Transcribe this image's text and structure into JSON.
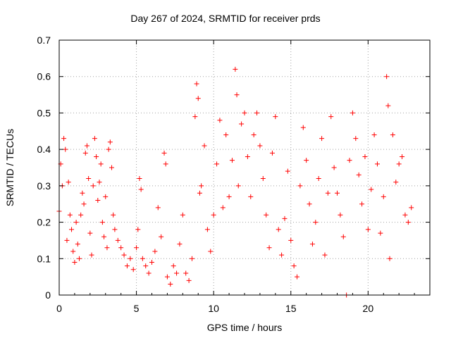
{
  "chart_data": {
    "type": "scatter",
    "title": "Day 267 of 2024, SRMTID for receiver prds",
    "xlabel": "GPS time / hours",
    "ylabel": "SRMTID / TECUs",
    "xlim": [
      0,
      24
    ],
    "ylim": [
      0,
      0.7
    ],
    "xticks": [
      0,
      5,
      10,
      15,
      20
    ],
    "xtick_labels": [
      "0",
      "5",
      "10",
      "15",
      "20"
    ],
    "yticks": [
      0,
      0.1,
      0.2,
      0.3,
      0.4,
      0.5,
      0.6,
      0.7
    ],
    "ytick_labels": [
      "0",
      "0.1",
      "0.2",
      "0.3",
      "0.4",
      "0.5",
      "0.6",
      "0.7"
    ],
    "grid": true,
    "marker": "+",
    "color": "#ff0000",
    "series": [
      {
        "name": "SRMTID",
        "points": [
          [
            0.0,
            0.23
          ],
          [
            0.1,
            0.36
          ],
          [
            0.2,
            0.3
          ],
          [
            0.3,
            0.43
          ],
          [
            0.4,
            0.4
          ],
          [
            0.5,
            0.15
          ],
          [
            0.6,
            0.31
          ],
          [
            0.7,
            0.22
          ],
          [
            0.8,
            0.18
          ],
          [
            0.9,
            0.12
          ],
          [
            1.0,
            0.09
          ],
          [
            1.1,
            0.2
          ],
          [
            1.2,
            0.14
          ],
          [
            1.3,
            0.1
          ],
          [
            1.4,
            0.22
          ],
          [
            1.5,
            0.28
          ],
          [
            1.6,
            0.25
          ],
          [
            1.7,
            0.39
          ],
          [
            1.8,
            0.41
          ],
          [
            1.9,
            0.32
          ],
          [
            2.0,
            0.17
          ],
          [
            2.1,
            0.11
          ],
          [
            2.2,
            0.3
          ],
          [
            2.3,
            0.43
          ],
          [
            2.4,
            0.38
          ],
          [
            2.5,
            0.26
          ],
          [
            2.6,
            0.31
          ],
          [
            2.7,
            0.36
          ],
          [
            2.8,
            0.2
          ],
          [
            2.9,
            0.16
          ],
          [
            3.0,
            0.27
          ],
          [
            3.1,
            0.13
          ],
          [
            3.2,
            0.4
          ],
          [
            3.3,
            0.42
          ],
          [
            3.4,
            0.35
          ],
          [
            3.5,
            0.22
          ],
          [
            3.6,
            0.18
          ],
          [
            3.8,
            0.15
          ],
          [
            4.0,
            0.13
          ],
          [
            4.2,
            0.11
          ],
          [
            4.4,
            0.08
          ],
          [
            4.6,
            0.1
          ],
          [
            4.8,
            0.07
          ],
          [
            5.0,
            0.13
          ],
          [
            5.1,
            0.18
          ],
          [
            5.2,
            0.32
          ],
          [
            5.3,
            0.29
          ],
          [
            5.4,
            0.1
          ],
          [
            5.6,
            0.08
          ],
          [
            5.8,
            0.06
          ],
          [
            6.0,
            0.09
          ],
          [
            6.2,
            0.12
          ],
          [
            6.4,
            0.24
          ],
          [
            6.6,
            0.16
          ],
          [
            6.8,
            0.39
          ],
          [
            6.9,
            0.36
          ],
          [
            7.0,
            0.05
          ],
          [
            7.2,
            0.03
          ],
          [
            7.4,
            0.08
          ],
          [
            7.6,
            0.06
          ],
          [
            7.8,
            0.14
          ],
          [
            8.0,
            0.22
          ],
          [
            8.2,
            0.06
          ],
          [
            8.4,
            0.04
          ],
          [
            8.6,
            0.1
          ],
          [
            8.8,
            0.49
          ],
          [
            8.9,
            0.58
          ],
          [
            9.0,
            0.54
          ],
          [
            9.1,
            0.28
          ],
          [
            9.2,
            0.3
          ],
          [
            9.4,
            0.41
          ],
          [
            9.6,
            0.18
          ],
          [
            9.8,
            0.12
          ],
          [
            10.0,
            0.22
          ],
          [
            10.2,
            0.36
          ],
          [
            10.4,
            0.48
          ],
          [
            10.6,
            0.24
          ],
          [
            10.8,
            0.44
          ],
          [
            11.0,
            0.27
          ],
          [
            11.2,
            0.37
          ],
          [
            11.4,
            0.62
          ],
          [
            11.5,
            0.55
          ],
          [
            11.6,
            0.3
          ],
          [
            11.8,
            0.47
          ],
          [
            12.0,
            0.5
          ],
          [
            12.2,
            0.38
          ],
          [
            12.4,
            0.27
          ],
          [
            12.6,
            0.44
          ],
          [
            12.8,
            0.5
          ],
          [
            13.0,
            0.41
          ],
          [
            13.2,
            0.32
          ],
          [
            13.4,
            0.22
          ],
          [
            13.6,
            0.13
          ],
          [
            13.8,
            0.39
          ],
          [
            14.0,
            0.49
          ],
          [
            14.2,
            0.18
          ],
          [
            14.4,
            0.11
          ],
          [
            14.6,
            0.21
          ],
          [
            14.8,
            0.34
          ],
          [
            15.0,
            0.15
          ],
          [
            15.2,
            0.08
          ],
          [
            15.4,
            0.05
          ],
          [
            15.6,
            0.3
          ],
          [
            15.8,
            0.46
          ],
          [
            16.0,
            0.37
          ],
          [
            16.2,
            0.25
          ],
          [
            16.4,
            0.14
          ],
          [
            16.6,
            0.2
          ],
          [
            16.8,
            0.32
          ],
          [
            17.0,
            0.43
          ],
          [
            17.2,
            0.11
          ],
          [
            17.4,
            0.28
          ],
          [
            17.6,
            0.49
          ],
          [
            17.8,
            0.35
          ],
          [
            18.0,
            0.28
          ],
          [
            18.2,
            0.22
          ],
          [
            18.4,
            0.16
          ],
          [
            18.6,
            0.0
          ],
          [
            18.8,
            0.37
          ],
          [
            19.0,
            0.5
          ],
          [
            19.2,
            0.43
          ],
          [
            19.4,
            0.33
          ],
          [
            19.6,
            0.25
          ],
          [
            19.8,
            0.38
          ],
          [
            20.0,
            0.18
          ],
          [
            20.2,
            0.29
          ],
          [
            20.4,
            0.44
          ],
          [
            20.6,
            0.36
          ],
          [
            20.8,
            0.17
          ],
          [
            21.0,
            0.27
          ],
          [
            21.2,
            0.6
          ],
          [
            21.3,
            0.52
          ],
          [
            21.4,
            0.1
          ],
          [
            21.6,
            0.44
          ],
          [
            21.8,
            0.31
          ],
          [
            22.0,
            0.36
          ],
          [
            22.2,
            0.38
          ],
          [
            22.4,
            0.22
          ],
          [
            22.6,
            0.2
          ],
          [
            22.8,
            0.24
          ]
        ]
      }
    ]
  }
}
